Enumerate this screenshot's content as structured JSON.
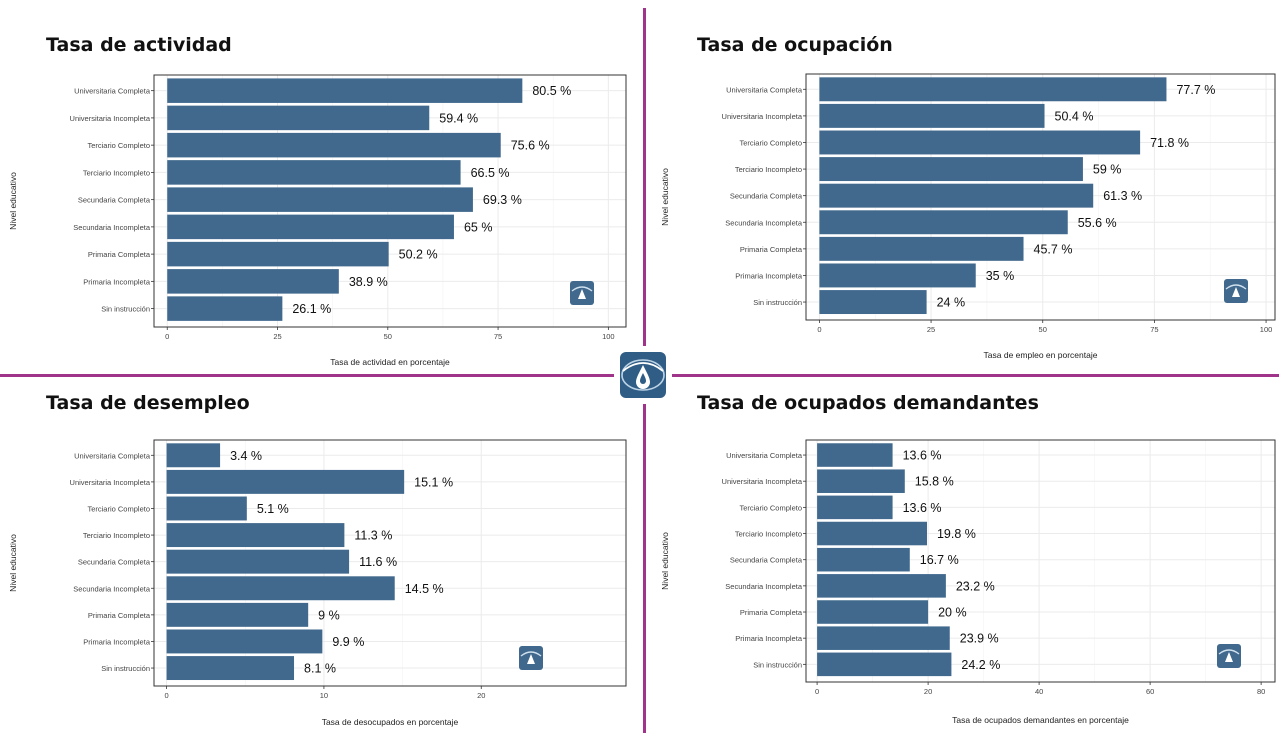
{
  "colors": {
    "bar": "#41698d",
    "divider": "#a0348a",
    "grid": "#ebebeb",
    "panel_border": "#333333"
  },
  "icons": {
    "center": "water-drop-logo-icon",
    "panel": "water-drop-logo-icon"
  },
  "chart_data": [
    {
      "type": "bar",
      "orientation": "horizontal",
      "title": "Tasa de actividad",
      "xlabel": "Tasa de actividad en porcentaje",
      "ylabel": "Nivel educativo",
      "categories": [
        "Universitaria Completa",
        "Universitaria Incompleta",
        "Terciario Completo",
        "Terciario Incompleto",
        "Secundaria Completa",
        "Secundaria Incompleta",
        "Primaria Completa",
        "Primaria Incompleta",
        "Sin instrucción"
      ],
      "values": [
        80.5,
        59.4,
        75.6,
        66.5,
        69.3,
        65,
        50.2,
        38.9,
        26.1
      ],
      "labels": [
        "80.5 %",
        "59.4 %",
        "75.6 %",
        "66.5 %",
        "69.3 %",
        "65 %",
        "50.2 %",
        "38.9 %",
        "26.1 %"
      ],
      "xticks": [
        0,
        25,
        50,
        75,
        100
      ],
      "xlim": [
        -3,
        104
      ],
      "grid": true
    },
    {
      "type": "bar",
      "orientation": "horizontal",
      "title": "Tasa de ocupación",
      "xlabel": "Tasa de empleo en porcentaje",
      "ylabel": "Nivel educativo",
      "categories": [
        "Universitaria Completa",
        "Universitaria Incompleta",
        "Terciario Completo",
        "Terciario Incompleto",
        "Secundaria Completa",
        "Secundaria Incompleta",
        "Primaria Completa",
        "Primaria Incompleta",
        "Sin instrucción"
      ],
      "values": [
        77.7,
        50.4,
        71.8,
        59,
        61.3,
        55.6,
        45.7,
        35,
        24
      ],
      "labels": [
        "77.7 %",
        "50.4 %",
        "71.8 %",
        "59 %",
        "61.3 %",
        "55.6 %",
        "45.7 %",
        "35 %",
        "24 %"
      ],
      "xticks": [
        0,
        25,
        50,
        75,
        100
      ],
      "xlim": [
        -3,
        102
      ],
      "grid": true
    },
    {
      "type": "bar",
      "orientation": "horizontal",
      "title": "Tasa de desempleo",
      "xlabel": "Tasa de desocupados en porcentaje",
      "ylabel": "Nivel educativo",
      "categories": [
        "Universitaria Completa",
        "Universitaria Incompleta",
        "Terciario Completo",
        "Terciario Incompleto",
        "Secundaria Completa",
        "Secundaria Incompleta",
        "Primaria Completa",
        "Primaria Incompleta",
        "Sin instrucción"
      ],
      "values": [
        3.4,
        15.1,
        5.1,
        11.3,
        11.6,
        14.5,
        9,
        9.9,
        8.1
      ],
      "labels": [
        "3.4 %",
        "15.1 %",
        "5.1 %",
        "11.3 %",
        "11.6 %",
        "14.5 %",
        "9 %",
        "9.9 %",
        "8.1 %"
      ],
      "xticks": [
        0,
        10,
        20
      ],
      "xlim": [
        -0.8,
        29.2
      ],
      "grid": true
    },
    {
      "type": "bar",
      "orientation": "horizontal",
      "title": "Tasa de ocupados demandantes",
      "xlabel": "Tasa de ocupados demandantes en porcentaje",
      "ylabel": "Nivel educativo",
      "categories": [
        "Universitaria Completa",
        "Universitaria Incompleta",
        "Terciario Completo",
        "Terciario Incompleto",
        "Secundaria Completa",
        "Secundaria Incompleta",
        "Primaria Completa",
        "Primaria Incompleta",
        "Sin instrucción"
      ],
      "values": [
        13.6,
        15.8,
        13.6,
        19.8,
        16.7,
        23.2,
        20,
        23.9,
        24.2
      ],
      "labels": [
        "13.6 %",
        "15.8 %",
        "13.6 %",
        "19.8 %",
        "16.7 %",
        "23.2 %",
        "20 %",
        "23.9 %",
        "24.2 %"
      ],
      "xticks": [
        0,
        20,
        40,
        60,
        80
      ],
      "xlim": [
        -2,
        82.5
      ],
      "grid": true
    }
  ]
}
